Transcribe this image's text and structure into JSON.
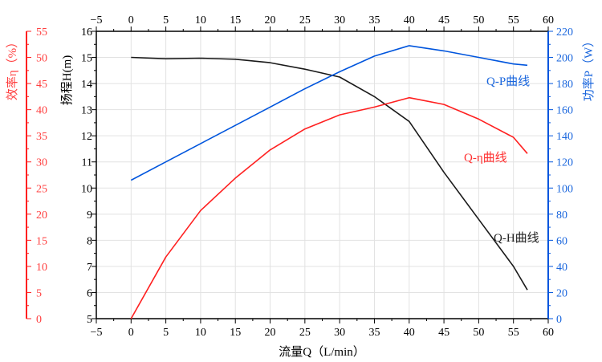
{
  "chart_data": {
    "type": "line",
    "x": [
      0,
      5,
      10,
      15,
      20,
      25,
      30,
      35,
      40,
      45,
      50,
      55,
      57
    ],
    "xlabel": "流量Q（L/min）",
    "xlim": [
      -5,
      60
    ],
    "xticks": [
      -5,
      0,
      5,
      10,
      15,
      20,
      25,
      30,
      35,
      40,
      45,
      50,
      55,
      60
    ],
    "axes": {
      "H": {
        "label": "扬程H(m)",
        "lim": [
          5,
          16
        ],
        "ticks": [
          5,
          6,
          7,
          8,
          9,
          10,
          11,
          12,
          13,
          14,
          15,
          16
        ],
        "color": "#000000",
        "side": "left"
      },
      "eta": {
        "label": "效率η（%）",
        "lim": [
          0,
          55
        ],
        "ticks": [
          0,
          5,
          10,
          15,
          20,
          25,
          30,
          35,
          40,
          45,
          50,
          55
        ],
        "color": "#ff2020",
        "side": "left-outer"
      },
      "P": {
        "label": "功率P（W）",
        "lim": [
          0,
          220
        ],
        "ticks": [
          0,
          20,
          40,
          60,
          80,
          100,
          120,
          140,
          160,
          180,
          200,
          220
        ],
        "color": "#0055dd",
        "side": "right"
      }
    },
    "grid": true,
    "series": [
      {
        "name": "Q-H曲线",
        "axis": "H",
        "color": "#1a1a1a",
        "values": [
          15.0,
          14.95,
          14.97,
          14.93,
          14.8,
          14.55,
          14.25,
          13.5,
          12.55,
          10.6,
          8.8,
          7.0,
          6.1
        ]
      },
      {
        "name": "Q-η曲线",
        "axis": "eta",
        "color": "#ff2020",
        "values": [
          0,
          11.8,
          20.7,
          26.9,
          32.3,
          36.3,
          39.0,
          40.5,
          42.3,
          41.0,
          38.2,
          34.7,
          31.6
        ]
      },
      {
        "name": "Q-P曲线",
        "axis": "P",
        "color": "#0055dd",
        "values": [
          106,
          120,
          134,
          148,
          162,
          176,
          189,
          201,
          209,
          205,
          200,
          195,
          194
        ]
      }
    ]
  }
}
